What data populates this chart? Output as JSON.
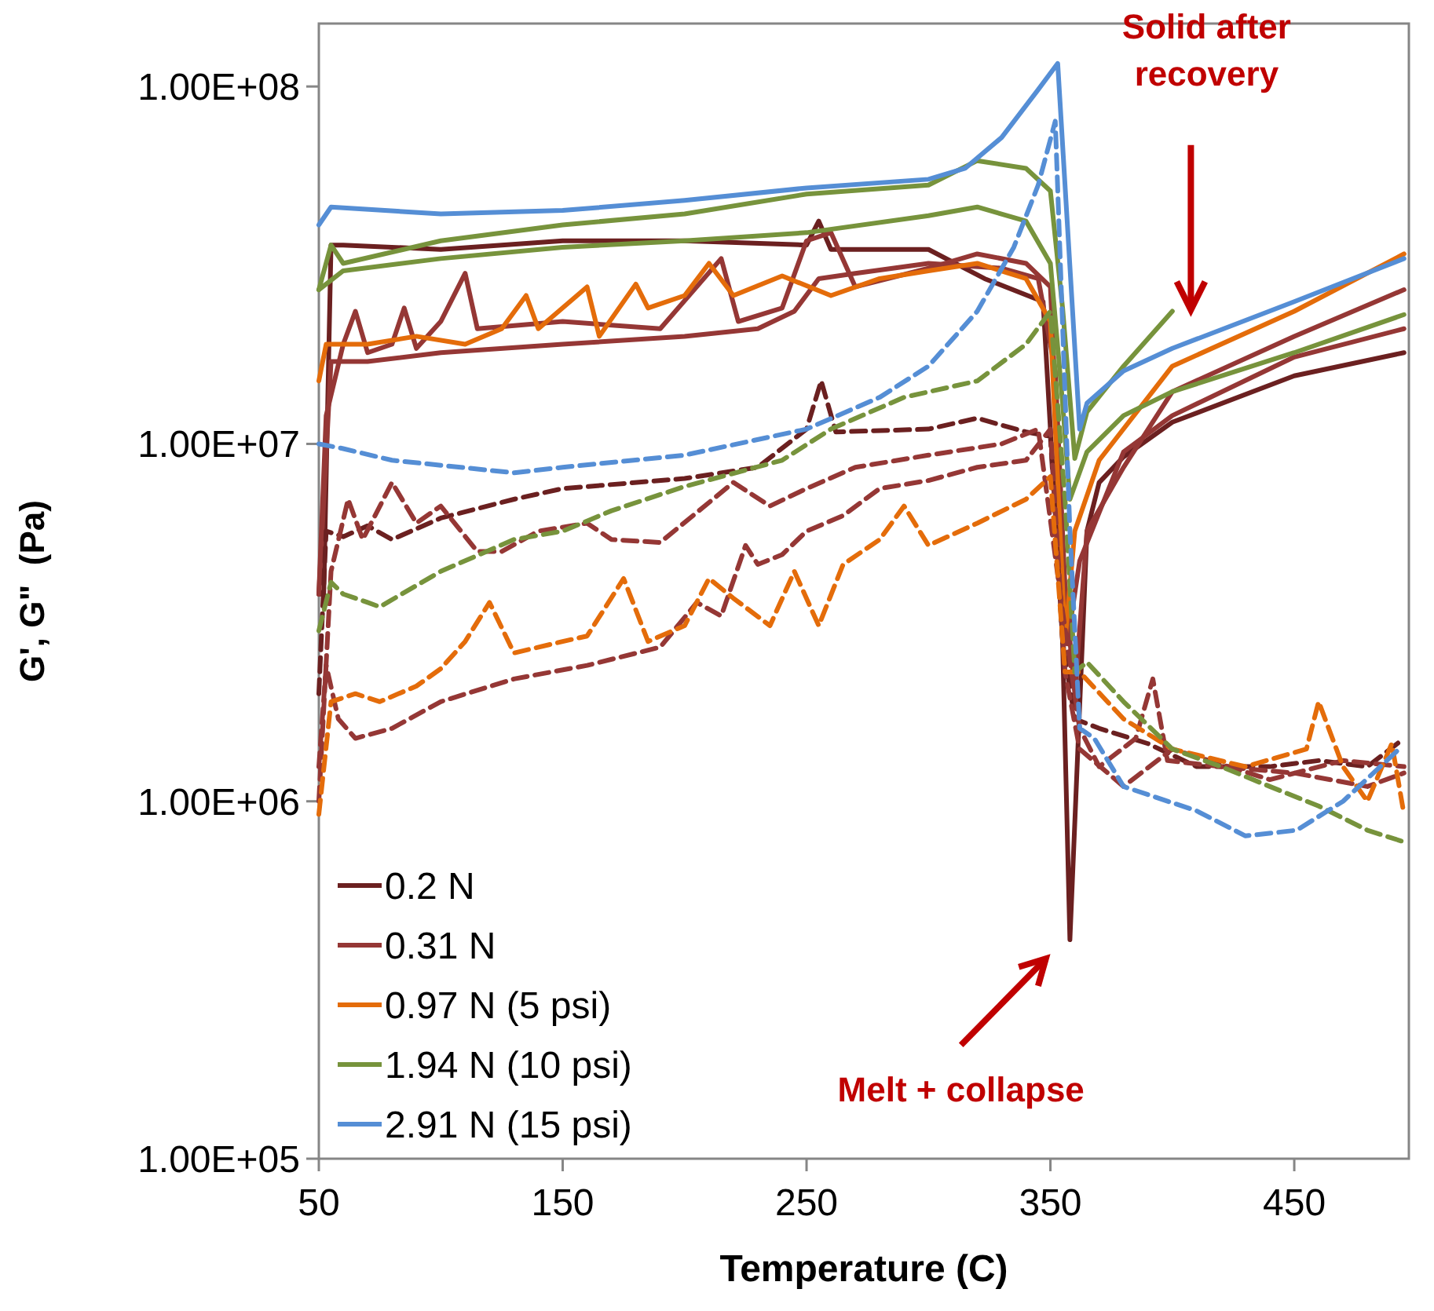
{
  "chart_data": {
    "type": "line",
    "xlabel": "Temperature (C)",
    "ylabel": "G', G\"  (Pa)",
    "log": "y",
    "grid": false,
    "legend": "bottom left",
    "xlim": [
      50,
      497
    ],
    "xticks": [
      50,
      150,
      250,
      350,
      450
    ],
    "ylim": [
      100000,
      150000000
    ],
    "yticks": [
      {
        "value": 100000,
        "label": "1.00E+05"
      },
      {
        "value": 1000000,
        "label": "1.00E+06"
      },
      {
        "value": 10000000,
        "label": "1.00E+07"
      },
      {
        "value": 100000000,
        "label": "1.00E+08"
      }
    ],
    "annotations": [
      "Solid after recovery",
      "Melt + collapse"
    ],
    "series": [
      {
        "name": "0.2 N",
        "color": "#6b2020",
        "line_style": "solid",
        "x": [
          50,
          52,
          55,
          60,
          100,
          150,
          200,
          250,
          255,
          260,
          300,
          323,
          347,
          355,
          358,
          365,
          370,
          380,
          400,
          450,
          495
        ],
        "values": [
          3800000,
          3800000,
          36000000,
          36000000,
          35000000,
          37000000,
          37000000,
          36000000,
          42000000,
          35000000,
          35000000,
          29000000,
          25000000,
          2800000,
          410000,
          5700000,
          7800000,
          9200000,
          11500000,
          15500000,
          18000000
        ]
      },
      {
        "name": "0.31 N",
        "color": "#953735",
        "line_style": "solid",
        "x": [
          50,
          53,
          60,
          65,
          70,
          80,
          85,
          90,
          100,
          110,
          115,
          150,
          190,
          215,
          222,
          240,
          250,
          260,
          270,
          300,
          320,
          340,
          350,
          355,
          360,
          365,
          380,
          400,
          450,
          495
        ],
        "values": [
          3800000,
          12000000,
          19000000,
          23500000,
          18000000,
          19000000,
          24000000,
          18500000,
          22000000,
          30000000,
          21000000,
          22000000,
          21000000,
          33000000,
          22000000,
          24000000,
          37000000,
          39000000,
          27500000,
          31000000,
          34000000,
          32000000,
          27500000,
          4700000,
          2000000,
          5700000,
          8600000,
          14000000,
          20000000,
          27000000
        ]
      },
      {
        "color": "#953735",
        "line_style": "solid",
        "x": [
          50,
          55,
          70,
          100,
          150,
          200,
          230,
          245,
          255,
          270,
          300,
          330,
          345,
          352,
          357,
          362,
          380,
          400,
          450,
          495
        ],
        "values": [
          3800000,
          17000000,
          17000000,
          18000000,
          19000000,
          20000000,
          21000000,
          23500000,
          29000000,
          30000000,
          32000000,
          31000000,
          29000000,
          16000000,
          2800000,
          4700000,
          9500000,
          12000000,
          17500000,
          21000000
        ]
      },
      {
        "name": "0.97 N (5 psi)",
        "color": "#e46c0a",
        "line_style": "solid",
        "x": [
          50,
          53,
          70,
          90,
          110,
          125,
          135,
          140,
          160,
          165,
          180,
          185,
          200,
          210,
          220,
          240,
          260,
          280,
          300,
          320,
          340,
          350,
          356,
          360,
          370,
          400,
          450,
          495
        ],
        "values": [
          15000000,
          19000000,
          19000000,
          20000000,
          19000000,
          21000000,
          26000000,
          21000000,
          27500000,
          20000000,
          28000000,
          24000000,
          26000000,
          32000000,
          26000000,
          29500000,
          26000000,
          29000000,
          30500000,
          32000000,
          29000000,
          22000000,
          2800000,
          5700000,
          9000000,
          16500000,
          23500000,
          34000000
        ]
      },
      {
        "name": "1.94 N (10 psi)",
        "color": "#77933c",
        "line_style": "solid",
        "x": [
          50,
          55,
          60,
          100,
          150,
          200,
          250,
          300,
          320,
          340,
          350,
          355,
          360,
          365,
          380,
          400
        ],
        "values": [
          27000000,
          36000000,
          32000000,
          37000000,
          41000000,
          44000000,
          50000000,
          53000000,
          62000000,
          59000000,
          51000000,
          24000000,
          9100000,
          12300000,
          16500000,
          23500000
        ]
      },
      {
        "color": "#77933c",
        "line_style": "solid",
        "x": [
          50,
          60,
          100,
          150,
          200,
          250,
          300,
          320,
          340,
          350,
          355,
          358,
          365,
          380,
          400,
          450,
          495
        ],
        "values": [
          27000000,
          30500000,
          33000000,
          35500000,
          37000000,
          39000000,
          43500000,
          46000000,
          42000000,
          32000000,
          13000000,
          7000000,
          9500000,
          12000000,
          14000000,
          18000000,
          23000000
        ]
      },
      {
        "name": "2.91 N (15 psi)",
        "color": "#558ed5",
        "line_style": "solid",
        "x": [
          50,
          55,
          100,
          150,
          200,
          250,
          300,
          315,
          330,
          345,
          353,
          362,
          365,
          380,
          400,
          450,
          495
        ],
        "values": [
          41000000,
          46000000,
          44000000,
          45000000,
          48000000,
          52000000,
          55000000,
          59000000,
          72000000,
          98000000,
          116000000,
          11000000,
          13000000,
          16000000,
          18500000,
          25000000,
          33000000
        ]
      },
      {
        "color": "#6b2020",
        "line_style": "dashed",
        "x": [
          50,
          53,
          60,
          70,
          80,
          100,
          130,
          150,
          200,
          230,
          250,
          256,
          262,
          300,
          320,
          340,
          350,
          355,
          360,
          370,
          390,
          410,
          440,
          460,
          480,
          495
        ],
        "values": [
          2000000,
          5700000,
          5500000,
          5900000,
          5400000,
          6200000,
          7000000,
          7500000,
          8000000,
          8600000,
          11000000,
          15000000,
          10800000,
          11000000,
          11800000,
          10800000,
          10500000,
          2800000,
          1700000,
          1600000,
          1450000,
          1250000,
          1250000,
          1300000,
          1250000,
          1500000
        ]
      },
      {
        "color": "#953735",
        "line_style": "dashed",
        "x": [
          50,
          55,
          62,
          68,
          80,
          90,
          100,
          115,
          125,
          140,
          160,
          170,
          190,
          220,
          235,
          250,
          270,
          300,
          330,
          345,
          355,
          362,
          370,
          385,
          392,
          398,
          420,
          450,
          480,
          495
        ],
        "values": [
          1000000,
          4400000,
          7000000,
          5400000,
          7800000,
          6000000,
          6700000,
          5000000,
          5000000,
          5700000,
          6000000,
          5400000,
          5300000,
          7800000,
          6700000,
          7500000,
          8600000,
          9300000,
          10000000,
          11000000,
          3400000,
          1600000,
          1250000,
          1500000,
          2200000,
          1300000,
          1250000,
          1200000,
          1100000,
          1200000
        ]
      },
      {
        "color": "#953735",
        "line_style": "dashed",
        "x": [
          50,
          53,
          58,
          65,
          80,
          100,
          130,
          160,
          190,
          205,
          215,
          225,
          230,
          240,
          250,
          265,
          280,
          300,
          320,
          340,
          350,
          356,
          362,
          380,
          400,
          440,
          470,
          495
        ],
        "values": [
          1250000,
          2400000,
          1700000,
          1500000,
          1600000,
          1900000,
          2200000,
          2400000,
          2700000,
          3600000,
          3300000,
          5200000,
          4600000,
          4900000,
          5700000,
          6300000,
          7500000,
          7900000,
          8600000,
          9000000,
          11000000,
          2300000,
          1400000,
          1100000,
          1400000,
          1150000,
          1300000,
          1250000
        ]
      },
      {
        "color": "#e46c0a",
        "line_style": "dashed",
        "x": [
          50,
          55,
          65,
          75,
          90,
          100,
          110,
          120,
          130,
          150,
          160,
          175,
          185,
          200,
          210,
          220,
          235,
          245,
          255,
          265,
          280,
          290,
          300,
          320,
          340,
          350,
          356,
          362,
          380,
          400,
          430,
          455,
          460,
          470,
          480,
          490,
          495
        ],
        "values": [
          920000,
          1900000,
          2000000,
          1900000,
          2100000,
          2350000,
          2800000,
          3600000,
          2600000,
          2800000,
          2900000,
          4200000,
          2800000,
          3100000,
          4200000,
          3700000,
          3100000,
          4400000,
          3100000,
          4600000,
          5400000,
          6700000,
          5200000,
          6000000,
          7000000,
          8100000,
          2300000,
          2300000,
          1700000,
          1400000,
          1250000,
          1400000,
          1900000,
          1250000,
          1000000,
          1450000,
          920000
        ]
      },
      {
        "color": "#77933c",
        "line_style": "dashed",
        "x": [
          50,
          55,
          60,
          70,
          75,
          100,
          130,
          150,
          170,
          200,
          240,
          260,
          290,
          320,
          340,
          350,
          356,
          360,
          365,
          380,
          400,
          420,
          440,
          460,
          480,
          495
        ],
        "values": [
          3000000,
          4100000,
          3800000,
          3600000,
          3500000,
          4400000,
          5400000,
          5700000,
          6500000,
          7600000,
          9000000,
          11000000,
          13500000,
          15000000,
          19000000,
          23500000,
          7000000,
          2300000,
          2450000,
          1900000,
          1400000,
          1250000,
          1100000,
          970000,
          830000,
          770000
        ]
      },
      {
        "color": "#558ed5",
        "line_style": "dashed",
        "x": [
          50,
          60,
          80,
          130,
          150,
          200,
          250,
          280,
          300,
          320,
          335,
          345,
          352,
          358,
          362,
          368,
          380,
          410,
          430,
          451,
          470,
          493
        ],
        "values": [
          10000000,
          9700000,
          9000000,
          8300000,
          8600000,
          9300000,
          11000000,
          13500000,
          16500000,
          23500000,
          35500000,
          53000000,
          80000000,
          5700000,
          1600000,
          1500000,
          1100000,
          940000,
          800000,
          830000,
          1000000,
          1400000
        ]
      }
    ]
  }
}
